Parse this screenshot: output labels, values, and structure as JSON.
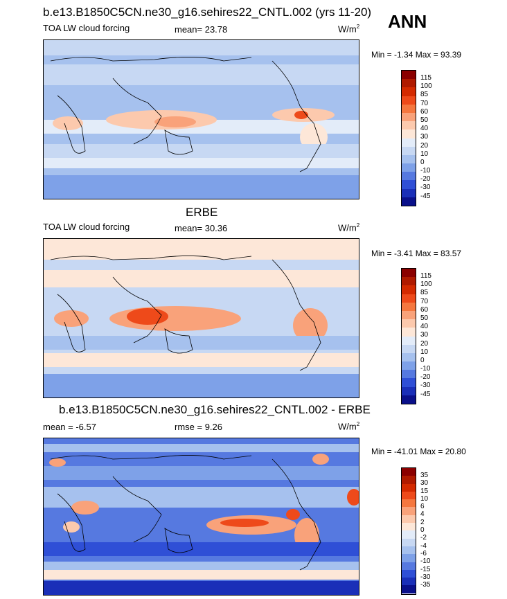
{
  "season": "ANN",
  "panels": [
    {
      "title": "b.e13.B1850C5CN.ne30_g16.sehires22_CNTL.002 (yrs 11-20)",
      "left_label": "TOA LW cloud forcing",
      "center_label": "mean=  23.78",
      "units": "W/m",
      "units_sup": "2",
      "minmax": "Min =  -1.34 Max =  93.39",
      "colorbar": {
        "ticks": [
          "115",
          "100",
          "85",
          "70",
          "60",
          "50",
          "40",
          "30",
          "20",
          "10",
          "0",
          "-10",
          "-20",
          "-30",
          "-45"
        ],
        "colors": [
          "#8b0000",
          "#b01a00",
          "#d42a00",
          "#ee4a1a",
          "#f5773f",
          "#f9a27a",
          "#fcc9ad",
          "#fde7d8",
          "#e3ecf9",
          "#c7d8f3",
          "#a6c1ee",
          "#7ea1e8",
          "#5679e0",
          "#2f4fd6",
          "#1a2fb8",
          "#0a108a"
        ]
      }
    },
    {
      "title": "ERBE",
      "left_label": "TOA LW cloud forcing",
      "center_label": "mean=  30.36",
      "units": "W/m",
      "units_sup": "2",
      "minmax": "Min =  -3.41 Max =  83.57",
      "colorbar": {
        "ticks": [
          "115",
          "100",
          "85",
          "70",
          "60",
          "50",
          "40",
          "30",
          "20",
          "10",
          "0",
          "-10",
          "-20",
          "-30",
          "-45"
        ],
        "colors": [
          "#8b0000",
          "#b01a00",
          "#d42a00",
          "#ee4a1a",
          "#f5773f",
          "#f9a27a",
          "#fcc9ad",
          "#fde7d8",
          "#e3ecf9",
          "#c7d8f3",
          "#a6c1ee",
          "#7ea1e8",
          "#5679e0",
          "#2f4fd6",
          "#1a2fb8",
          "#0a108a"
        ]
      }
    },
    {
      "title": "b.e13.B1850C5CN.ne30_g16.sehires22_CNTL.002 - ERBE",
      "left_label": "mean =  -6.57",
      "center_label": "rmse =    9.26",
      "units": "W/m",
      "units_sup": "2",
      "minmax": "Min = -41.01 Max =  20.80",
      "colorbar": {
        "ticks": [
          "35",
          "30",
          "15",
          "10",
          "6",
          "4",
          "2",
          "0",
          "-2",
          "-4",
          "-6",
          "-10",
          "-15",
          "-30",
          "-35"
        ],
        "colors": [
          "#8b0000",
          "#b01a00",
          "#d42a00",
          "#ee4a1a",
          "#f5773f",
          "#f9a27a",
          "#fcc9ad",
          "#fde7d8",
          "#e3ecf9",
          "#c7d8f3",
          "#a6c1ee",
          "#7ea1e8",
          "#5679e0",
          "#2f4fd6",
          "#1a2fb8",
          "#0a108a"
        ]
      }
    }
  ]
}
